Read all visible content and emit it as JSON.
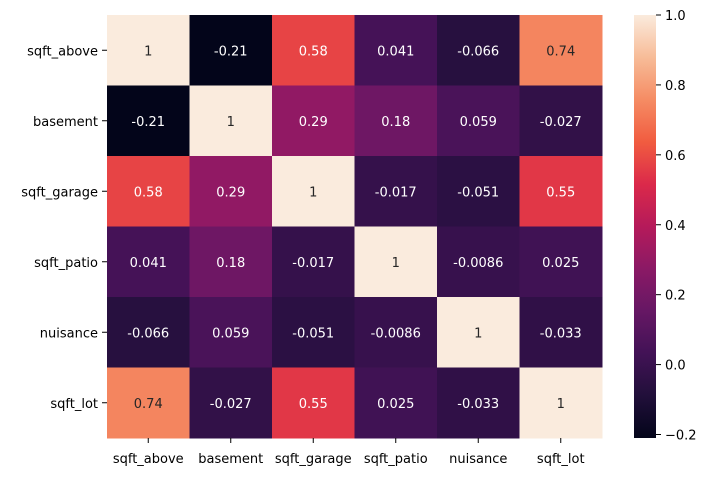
{
  "chart_data": {
    "type": "heatmap",
    "title": "",
    "xlabel": "",
    "ylabel": "",
    "rows": [
      "sqft_above",
      "basement",
      "sqft_garage",
      "sqft_patio",
      "nuisance",
      "sqft_lot"
    ],
    "cols": [
      "sqft_above",
      "basement",
      "sqft_garage",
      "sqft_patio",
      "nuisance",
      "sqft_lot"
    ],
    "values": [
      [
        1,
        -0.21,
        0.58,
        0.041,
        -0.066,
        0.74
      ],
      [
        -0.21,
        1,
        0.29,
        0.18,
        0.059,
        -0.027
      ],
      [
        0.58,
        0.29,
        1,
        -0.017,
        -0.051,
        0.55
      ],
      [
        0.041,
        0.18,
        -0.017,
        1,
        -0.0086,
        0.025
      ],
      [
        -0.066,
        0.059,
        -0.051,
        -0.0086,
        1,
        -0.033
      ],
      [
        0.74,
        -0.027,
        0.55,
        0.025,
        -0.033,
        1
      ]
    ],
    "annotations": [
      [
        "1",
        "-0.21",
        "0.58",
        "0.041",
        "-0.066",
        "0.74"
      ],
      [
        "-0.21",
        "1",
        "0.29",
        "0.18",
        "0.059",
        "-0.027"
      ],
      [
        "0.58",
        "0.29",
        "1",
        "-0.017",
        "-0.051",
        "0.55"
      ],
      [
        "0.041",
        "0.18",
        "-0.017",
        "1",
        "-0.0086",
        "0.025"
      ],
      [
        "-0.066",
        "0.059",
        "-0.051",
        "-0.0086",
        "1",
        "-0.033"
      ],
      [
        "0.74",
        "-0.027",
        "0.55",
        "0.025",
        "-0.033",
        "1"
      ]
    ],
    "colorbar": {
      "colormap": "rocket",
      "vmin": -0.21,
      "vmax": 1,
      "ticks": [
        -0.2,
        0.0,
        0.2,
        0.4,
        0.6,
        0.8,
        1.0
      ],
      "tick_labels": [
        "−0.2",
        "0.0",
        "0.2",
        "0.4",
        "0.6",
        "0.8",
        "1.0"
      ]
    }
  }
}
